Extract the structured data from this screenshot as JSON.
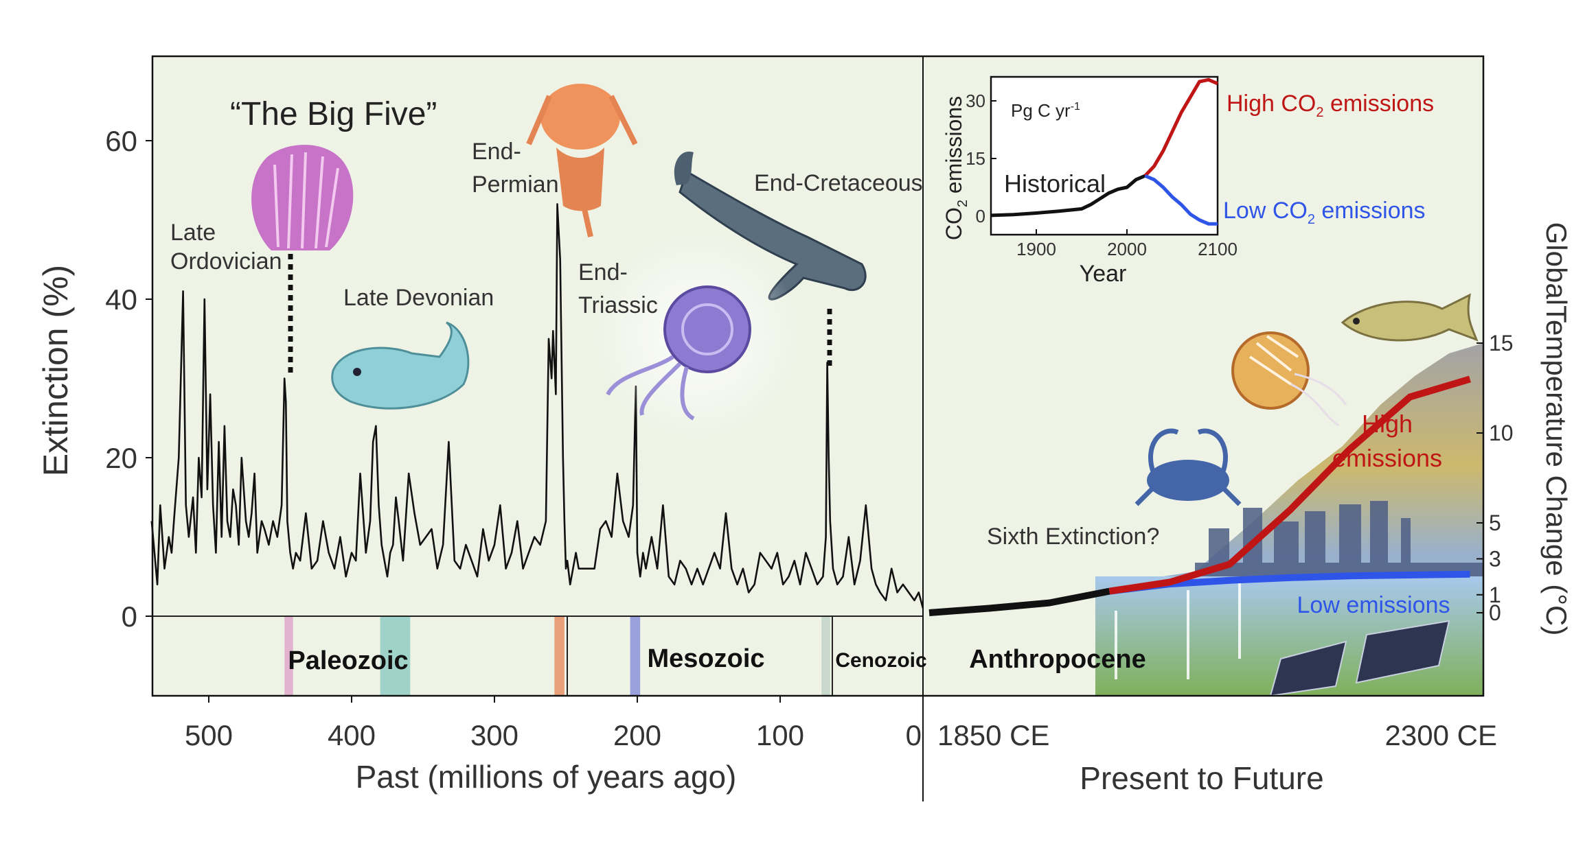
{
  "colors": {
    "panel_bg": "#eef3e6",
    "high": "#c01515",
    "low": "#2f55e8",
    "line": "#111111",
    "ordovician_band": "#e2b3cf",
    "devonian_band": "#9fd2c8",
    "permian_band": "#e8a07a",
    "triassic_band": "#9aa0dc",
    "cretaceous_band": "#c8d8cc"
  },
  "chart_data": [
    {
      "type": "line",
      "title": "“The Big Five”",
      "xlabel": "Past (millions of years ago)",
      "ylabel": "Extinction (%)",
      "xlim": [
        540,
        0
      ],
      "ylim": [
        -10,
        70
      ],
      "x_ticks": [
        "500",
        "400",
        "300",
        "200",
        "100",
        "0"
      ],
      "y_ticks": [
        "0",
        "20",
        "40",
        "60"
      ],
      "series": [
        {
          "x": [
            540,
            536,
            534,
            531,
            528,
            526,
            524,
            521,
            518,
            516,
            514,
            511,
            509,
            507,
            505,
            503,
            501,
            499,
            497,
            495,
            493,
            491,
            489,
            487,
            485,
            483,
            481,
            479,
            477,
            474,
            472,
            470,
            468,
            466,
            463,
            461,
            458,
            455,
            452,
            449,
            447,
            446,
            445,
            443,
            441,
            439,
            436,
            432,
            428,
            424,
            420,
            416,
            412,
            408,
            404,
            400,
            397,
            394,
            390,
            387,
            385,
            383,
            381,
            379,
            377,
            375,
            373,
            371,
            369,
            367,
            364,
            360,
            356,
            352,
            348,
            344,
            340,
            336,
            332,
            328,
            324,
            320,
            316,
            312,
            308,
            304,
            300,
            296,
            292,
            288,
            284,
            280,
            276,
            272,
            268,
            264,
            262,
            260,
            259,
            257,
            256,
            254,
            252,
            251,
            250,
            249,
            247,
            245,
            243,
            241,
            238,
            234,
            230,
            226,
            222,
            218,
            214,
            210,
            206,
            203,
            201,
            200,
            198,
            196,
            194,
            190,
            186,
            182,
            178,
            174,
            170,
            166,
            162,
            158,
            154,
            150,
            146,
            142,
            138,
            134,
            130,
            126,
            122,
            118,
            114,
            110,
            106,
            102,
            98,
            94,
            90,
            86,
            82,
            78,
            74,
            70,
            68,
            67,
            66,
            65,
            63,
            60,
            56,
            52,
            48,
            44,
            40,
            36,
            33,
            30,
            26,
            22,
            18,
            14,
            10,
            6,
            3,
            0
          ],
          "y": [
            12,
            4,
            14,
            6,
            10,
            8,
            13,
            20,
            41,
            14,
            10,
            15,
            8,
            20,
            15,
            40,
            16,
            28,
            14,
            8,
            22,
            10,
            24,
            12,
            10,
            16,
            14,
            9,
            20,
            12,
            10,
            13,
            18,
            8,
            12,
            11,
            9,
            12,
            10,
            14,
            30,
            27,
            12,
            8,
            6,
            8,
            7,
            13,
            6,
            7,
            12,
            8,
            6,
            10,
            5,
            8,
            7,
            18,
            8,
            12,
            22,
            24,
            14,
            9,
            7,
            5,
            8,
            9,
            15,
            12,
            7,
            18,
            13,
            9,
            10,
            11,
            6,
            9,
            22,
            7,
            6,
            9,
            7,
            5,
            11,
            7,
            9,
            14,
            6,
            8,
            12,
            6,
            8,
            10,
            9,
            12,
            35,
            30,
            36,
            28,
            52,
            45,
            20,
            12,
            6,
            7,
            4,
            6,
            8,
            6,
            6,
            6,
            6,
            11,
            12,
            10,
            18,
            12,
            10,
            14,
            29,
            8,
            5,
            8,
            6,
            10,
            6,
            14,
            5,
            4,
            7,
            6,
            4,
            6,
            4,
            6,
            8,
            6,
            13,
            6,
            4,
            6,
            3,
            4,
            8,
            7,
            6,
            8,
            4,
            5,
            7,
            4,
            8,
            6,
            4,
            5,
            10,
            32,
            20,
            12,
            6,
            4,
            5,
            10,
            4,
            7,
            14,
            6,
            4,
            3,
            2,
            6,
            3,
            4,
            3,
            2,
            3,
            1
          ]
        }
      ],
      "annotations": [
        "Late Ordovician",
        "Late Devonian",
        "End-Permian",
        "End-Triassic",
        "End-Cretaceous"
      ]
    },
    {
      "type": "line",
      "xlabel": "Present to Future",
      "ylabel": "GlobalTemperature Change (°C)",
      "x_ticks": [
        "1850 CE",
        "2300 CE"
      ],
      "y_ticks": [
        "0",
        "1",
        "3",
        "5",
        "10",
        "15"
      ],
      "ylim": [
        -2.5,
        18.5
      ],
      "series": [
        {
          "name": "High emissions",
          "x": [
            1850,
            1900,
            1950,
            2000,
            2050,
            2100,
            2150,
            2200,
            2250,
            2300
          ],
          "y": [
            0.0,
            0.25,
            0.55,
            1.2,
            1.7,
            2.7,
            5.7,
            9.1,
            12.0,
            13.0
          ]
        },
        {
          "name": "Low emissions",
          "x": [
            1850,
            1900,
            1950,
            2000,
            2050,
            2100,
            2150,
            2200,
            2250,
            2300
          ],
          "y": [
            0.0,
            0.25,
            0.55,
            1.2,
            1.6,
            1.8,
            1.95,
            2.05,
            2.1,
            2.15
          ]
        }
      ],
      "annotations": [
        "Sixth Extinction?"
      ]
    },
    {
      "type": "line",
      "xlabel": "Year",
      "ylabel": "CO2 emissions",
      "units": "Pg C yr-1",
      "xlim": [
        1850,
        2100
      ],
      "ylim": [
        -5,
        38
      ],
      "x_ticks": [
        "1900",
        "2000",
        "2100"
      ],
      "y_ticks": [
        "0",
        "15",
        "30"
      ],
      "series": [
        {
          "name": "Historical",
          "x": [
            1850,
            1875,
            1900,
            1925,
            1950,
            1960,
            1970,
            1980,
            1990,
            2000,
            2010,
            2020
          ],
          "y": [
            0.2,
            0.4,
            0.8,
            1.3,
            1.9,
            3,
            4.5,
            6,
            7,
            7.5,
            9.5,
            10.5
          ]
        },
        {
          "name": "High CO2 emissions",
          "x": [
            2020,
            2030,
            2040,
            2050,
            2060,
            2070,
            2080,
            2090,
            2100
          ],
          "y": [
            10.5,
            13,
            17,
            22,
            27,
            31,
            35,
            35.5,
            34.5
          ]
        },
        {
          "name": "Low CO2 emissions",
          "x": [
            2020,
            2030,
            2040,
            2050,
            2060,
            2070,
            2080,
            2090,
            2100
          ],
          "y": [
            10.5,
            9.5,
            7.5,
            5,
            3,
            0.5,
            -1,
            -2,
            -2
          ]
        }
      ]
    }
  ],
  "labels": {
    "big_five": "“The Big Five”",
    "late": "Late",
    "ordovician": "Ordovician",
    "late_devonian": "Late Devonian",
    "end_dash": "End-",
    "permian": "Permian",
    "triassic": "Triassic",
    "end_cretaceous": "End-Cretaceous",
    "sixth_extinction": "Sixth Extinction?",
    "high_emissions_1": "High",
    "high_emissions_2": "emissions",
    "low_emissions": "Low emissions",
    "y_left": "Extinction (%)",
    "y_right": "GlobalTemperature Change (°C)",
    "x_past": "Past (millions of years ago)",
    "x_future": "Present to Future"
  },
  "eras": {
    "paleozoic": "Paleozoic",
    "mesozoic": "Mesozoic",
    "cenozoic": "Cenozoic",
    "anthropocene": "Anthropocene"
  },
  "inset": {
    "units_main": "Pg C yr",
    "units_sup": "-1",
    "historical": "Historical",
    "xlabel": "Year",
    "ylabel_co": "CO",
    "ylabel_sub": "2",
    "ylabel_rest": " emissions",
    "high_pre": "High CO",
    "high_sub": "2",
    "high_post": " emissions",
    "low_pre": "Low CO",
    "low_sub": "2",
    "low_post": " emissions"
  }
}
